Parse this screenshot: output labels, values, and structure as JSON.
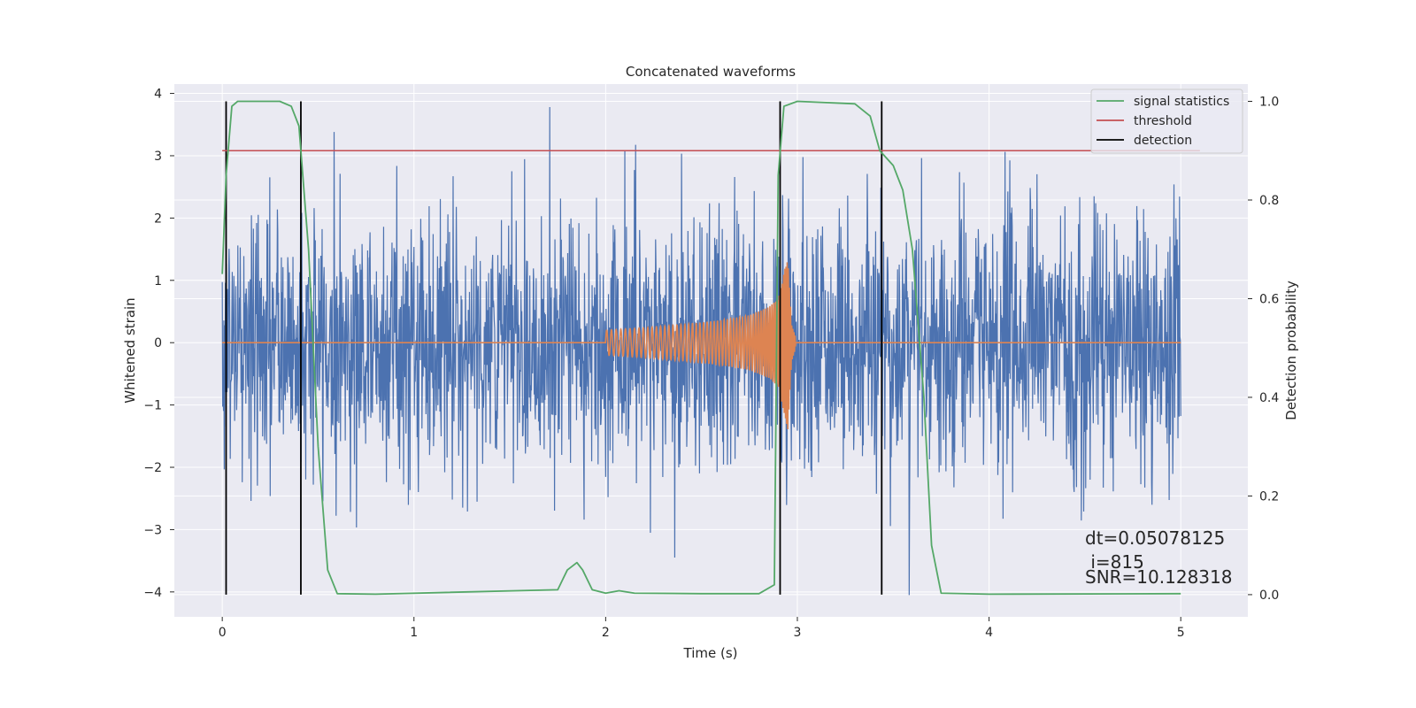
{
  "chart_data": {
    "type": "line",
    "title": "Concatenated waveforms",
    "xlabel": "Time (s)",
    "ylabel": "Whitened strain",
    "ylabel_right": "Detection probability",
    "xlim": [
      -0.25,
      5.35
    ],
    "ylim": [
      -4.4,
      4.15
    ],
    "ylim_right": [
      -0.045,
      1.035
    ],
    "x_ticks": [
      0,
      1,
      2,
      3,
      4,
      5
    ],
    "y_ticks": [
      -4,
      -3,
      -2,
      -1,
      0,
      1,
      2,
      3,
      4
    ],
    "y_ticks_right": [
      0.0,
      0.2,
      0.4,
      0.6,
      0.8,
      1.0
    ],
    "x_tick_labels": [
      "0",
      "1",
      "2",
      "3",
      "4",
      "5"
    ],
    "y_tick_labels": [
      "−4",
      "−3",
      "−2",
      "−1",
      "0",
      "1",
      "2",
      "3",
      "4"
    ],
    "y_tick_labels_right": [
      "0.0",
      "0.2",
      "0.4",
      "0.6",
      "0.8",
      "1.0"
    ],
    "grid": true,
    "legend_position": "top-right",
    "legend": [
      {
        "label": "signal statistics",
        "color": "#55a868"
      },
      {
        "label": "threshold",
        "color": "#c44e52"
      },
      {
        "label": "detection",
        "color": "#000000"
      }
    ],
    "series": [
      {
        "name": "whitened strain",
        "axis": "left",
        "color": "#4c72b0",
        "style": "noise",
        "x_range": [
          0,
          5
        ],
        "typical_abs_range": [
          0.9,
          1.5
        ],
        "max": 3.78,
        "min": -4.05
      },
      {
        "name": "injected waveform",
        "axis": "left",
        "color": "#dd8452",
        "x": [
          0,
          2.0,
          2.2,
          2.4,
          2.6,
          2.75,
          2.85,
          2.9,
          2.95,
          2.97,
          3.0,
          5.0
        ],
        "amplitude": [
          0,
          0.2,
          0.24,
          0.29,
          0.36,
          0.44,
          0.57,
          0.7,
          1.4,
          0.3,
          0,
          0
        ]
      },
      {
        "name": "signal statistics",
        "axis": "right",
        "color": "#55a868",
        "x": [
          0.0,
          0.02,
          0.05,
          0.08,
          0.15,
          0.3,
          0.36,
          0.4,
          0.45,
          0.5,
          0.55,
          0.6,
          0.8,
          1.75,
          1.8,
          1.85,
          1.88,
          1.93,
          2.0,
          2.07,
          2.15,
          2.5,
          2.8,
          2.88,
          2.9,
          2.93,
          3.0,
          3.3,
          3.38,
          3.43,
          3.5,
          3.55,
          3.6,
          3.66,
          3.7,
          3.75,
          4.0,
          5.0
        ],
        "values": [
          0.65,
          0.85,
          0.99,
          1.0,
          1.0,
          1.0,
          0.99,
          0.95,
          0.7,
          0.3,
          0.05,
          0.002,
          0.001,
          0.01,
          0.05,
          0.065,
          0.05,
          0.01,
          0.003,
          0.008,
          0.003,
          0.002,
          0.002,
          0.02,
          0.85,
          0.99,
          1.0,
          0.995,
          0.97,
          0.9,
          0.87,
          0.82,
          0.7,
          0.4,
          0.1,
          0.003,
          0.001,
          0.002
        ]
      },
      {
        "name": "threshold",
        "axis": "right",
        "color": "#c44e52",
        "x": [
          0.0,
          5.1
        ],
        "values": [
          0.9,
          0.9
        ]
      }
    ],
    "detections": [
      0.02,
      0.41,
      2.91,
      3.44
    ]
  },
  "annotations": {
    "dt": "dt=0.05078125",
    "i": " i=815",
    "snr": "SNR=10.128318"
  }
}
